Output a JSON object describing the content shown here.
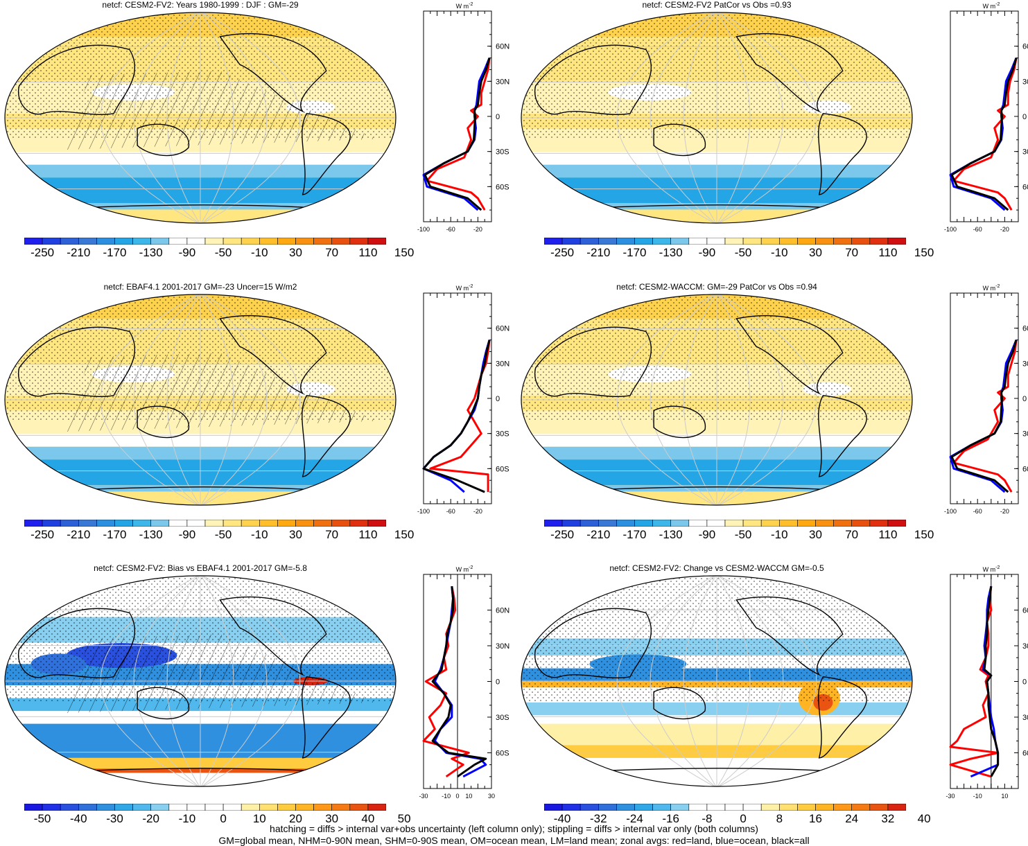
{
  "figure": {
    "footer": [
      "hatching = diffs > internal var+obs uncertainty (left column only); stippling = diffs > internal var only (both columns)",
      "GM=global mean, NHM=0-90N mean, SHM=0-90S mean, OM=ocean mean, LM=land mean; zonal avgs: red=land, blue=ocean, black=all"
    ],
    "zonal_unit": "W m",
    "zonal_unit_exp": "-2",
    "lat_labels": [
      "60N",
      "30N",
      "0",
      "30S",
      "60S"
    ],
    "colors": {
      "land": "#ff0000",
      "ocean": "#0000ff",
      "all": "#000000"
    }
  },
  "panels": [
    {
      "title": "netcf: CESM2-FV2: Years 1980-1999 : DJF : GM=-29",
      "kind": "field",
      "cbar_labels": [
        "-250",
        "-210",
        "-170",
        "-130",
        "-90",
        "-50",
        "-10",
        "30",
        "70",
        "110",
        "150"
      ],
      "zonal_ticks": [
        "-100",
        "-60",
        "-20"
      ]
    },
    {
      "title": "netcf: CESM2-FV2 PatCor vs Obs =0.93",
      "kind": "field",
      "cbar_labels": [
        "-250",
        "-210",
        "-170",
        "-130",
        "-90",
        "-50",
        "-10",
        "30",
        "70",
        "110",
        "150"
      ],
      "zonal_ticks": [
        "-100",
        "-60",
        "-20"
      ]
    },
    {
      "title": "netcf: EBAF4.1 2001-2017 GM=-23 Uncer=15 W/m2",
      "kind": "field",
      "cbar_labels": [
        "-250",
        "-210",
        "-170",
        "-130",
        "-90",
        "-50",
        "-10",
        "30",
        "70",
        "110",
        "150"
      ],
      "zonal_ticks": [
        "-100",
        "-60",
        "-20"
      ]
    },
    {
      "title": "netcf: CESM2-WACCM: GM=-29 PatCor vs Obs =0.94",
      "kind": "field",
      "cbar_labels": [
        "-250",
        "-210",
        "-170",
        "-130",
        "-90",
        "-50",
        "-10",
        "30",
        "70",
        "110",
        "150"
      ],
      "zonal_ticks": [
        "-100",
        "-60",
        "-20"
      ]
    },
    {
      "title": "netcf: CESM2-FV2: Bias vs EBAF4.1 2001-2017 GM=-5.8",
      "kind": "bias",
      "cbar_labels": [
        "-50",
        "-40",
        "-30",
        "-20",
        "-10",
        "0",
        "10",
        "20",
        "30",
        "40",
        "50"
      ],
      "zonal_ticks": [
        "-30",
        "-10",
        "0",
        "10",
        "30"
      ]
    },
    {
      "title": "netcf: CESM2-FV2: Change vs CESM2-WACCM GM=-0.5",
      "kind": "change",
      "cbar_labels": [
        "-40",
        "-32",
        "-24",
        "-16",
        "-8",
        "0",
        "8",
        "16",
        "24",
        "32",
        "40"
      ],
      "zonal_ticks": [
        "-30",
        "-10",
        "10"
      ]
    }
  ],
  "chart_data": [
    {
      "type": "line",
      "title": "netcf: CESM2-FV2: Years 1980-1999 : DJF : GM=-29",
      "xlim": [
        -100,
        0
      ],
      "ylim": [
        -90,
        90
      ],
      "y_ticks": [
        "60N",
        "30N",
        "0",
        "30S",
        "60S"
      ],
      "series": [
        {
          "name": "land",
          "lat": [
            50,
            40,
            30,
            20,
            10,
            5,
            0,
            -10,
            -20,
            -35,
            -45,
            -55,
            -65,
            -70,
            -80
          ],
          "values": [
            -3,
            -5,
            -10,
            -15,
            -15,
            -30,
            -20,
            -35,
            -30,
            -40,
            -80,
            -95,
            -30,
            -20,
            -10
          ]
        },
        {
          "name": "ocean",
          "lat": [
            50,
            40,
            30,
            20,
            10,
            5,
            0,
            -10,
            -20,
            -30,
            -40,
            -50,
            -60,
            -70,
            -80
          ],
          "values": [
            -3,
            -10,
            -18,
            -20,
            -22,
            -25,
            -25,
            -23,
            -25,
            -35,
            -70,
            -100,
            -95,
            -40,
            -20
          ]
        },
        {
          "name": "all",
          "lat": [
            50,
            40,
            30,
            20,
            10,
            5,
            0,
            -10,
            -20,
            -30,
            -40,
            -50,
            -60,
            -70,
            -80
          ],
          "values": [
            -3,
            -8,
            -15,
            -18,
            -20,
            -25,
            -24,
            -25,
            -26,
            -35,
            -70,
            -98,
            -90,
            -35,
            -15
          ]
        }
      ]
    },
    {
      "type": "line",
      "title": "netcf: CESM2-FV2 PatCor vs Obs =0.93",
      "xlim": [
        -100,
        0
      ],
      "ylim": [
        -90,
        90
      ],
      "y_ticks": [
        "60N",
        "30N",
        "0",
        "30S",
        "60S"
      ],
      "series": [
        {
          "name": "land",
          "lat": [
            50,
            40,
            30,
            20,
            10,
            5,
            0,
            -10,
            -20,
            -35,
            -45,
            -55,
            -65,
            -70,
            -80
          ],
          "values": [
            -3,
            -6,
            -12,
            -15,
            -15,
            -30,
            -20,
            -35,
            -30,
            -40,
            -80,
            -95,
            -30,
            -20,
            -10
          ]
        },
        {
          "name": "ocean",
          "lat": [
            50,
            40,
            30,
            20,
            10,
            5,
            0,
            -10,
            -20,
            -30,
            -40,
            -50,
            -60,
            -70,
            -80
          ],
          "values": [
            -3,
            -10,
            -18,
            -20,
            -22,
            -25,
            -25,
            -23,
            -25,
            -35,
            -70,
            -100,
            -95,
            -40,
            -20
          ]
        },
        {
          "name": "all",
          "lat": [
            50,
            40,
            30,
            20,
            10,
            5,
            0,
            -10,
            -20,
            -30,
            -40,
            -50,
            -60,
            -70,
            -80
          ],
          "values": [
            -3,
            -8,
            -15,
            -18,
            -20,
            -25,
            -24,
            -25,
            -26,
            -35,
            -70,
            -98,
            -90,
            -35,
            -15
          ]
        }
      ]
    },
    {
      "type": "line",
      "title": "netcf: EBAF4.1 2001-2017 GM=-23 Uncer=15 W/m2",
      "xlim": [
        -100,
        0
      ],
      "ylim": [
        -90,
        90
      ],
      "y_ticks": [
        "60N",
        "30N",
        "0",
        "30S",
        "60S"
      ],
      "series": [
        {
          "name": "land",
          "lat": [
            50,
            40,
            30,
            20,
            10,
            0,
            -10,
            -20,
            -30,
            -40,
            -50,
            -60,
            -65,
            -70,
            -80
          ],
          "values": [
            -3,
            -5,
            -8,
            -15,
            -20,
            -25,
            -35,
            -25,
            -15,
            -30,
            -45,
            -90,
            -5,
            -5,
            -5
          ]
        },
        {
          "name": "ocean",
          "lat": [
            50,
            40,
            30,
            20,
            10,
            0,
            -10,
            -20,
            -30,
            -40,
            -50,
            -60,
            -70,
            -80
          ],
          "values": [
            -3,
            -8,
            -12,
            -15,
            -18,
            -20,
            -25,
            -35,
            -45,
            -60,
            -85,
            -100,
            -60,
            -40
          ]
        },
        {
          "name": "all",
          "lat": [
            50,
            40,
            30,
            20,
            10,
            0,
            -10,
            -20,
            -30,
            -40,
            -50,
            -60,
            -70,
            -80
          ],
          "values": [
            -3,
            -7,
            -10,
            -15,
            -18,
            -20,
            -27,
            -35,
            -45,
            -60,
            -85,
            -100,
            -50,
            -10
          ]
        }
      ]
    },
    {
      "type": "line",
      "title": "netcf: CESM2-WACCM: GM=-29 PatCor vs Obs =0.94",
      "xlim": [
        -100,
        0
      ],
      "ylim": [
        -90,
        90
      ],
      "y_ticks": [
        "60N",
        "30N",
        "0",
        "30S",
        "60S"
      ],
      "series": [
        {
          "name": "land",
          "lat": [
            50,
            40,
            30,
            20,
            10,
            5,
            0,
            -10,
            -20,
            -35,
            -45,
            -55,
            -65,
            -70,
            -80
          ],
          "values": [
            -3,
            -5,
            -10,
            -15,
            -15,
            -30,
            -20,
            -35,
            -30,
            -45,
            -80,
            -95,
            -30,
            -20,
            -10
          ]
        },
        {
          "name": "ocean",
          "lat": [
            50,
            40,
            30,
            20,
            10,
            5,
            0,
            -10,
            -20,
            -30,
            -40,
            -50,
            -60,
            -70,
            -80
          ],
          "values": [
            -3,
            -10,
            -18,
            -20,
            -22,
            -25,
            -25,
            -23,
            -25,
            -35,
            -70,
            -100,
            -95,
            -40,
            -20
          ]
        },
        {
          "name": "all",
          "lat": [
            50,
            40,
            30,
            20,
            10,
            5,
            0,
            -10,
            -20,
            -30,
            -40,
            -50,
            -60,
            -70,
            -80
          ],
          "values": [
            -3,
            -8,
            -15,
            -18,
            -20,
            -25,
            -24,
            -25,
            -26,
            -35,
            -70,
            -98,
            -90,
            -35,
            -15
          ]
        }
      ]
    },
    {
      "type": "line",
      "title": "netcf: CESM2-FV2: Bias vs EBAF4.1 2001-2017 GM=-5.8",
      "xlim": [
        -30,
        30
      ],
      "ylim": [
        -90,
        90
      ],
      "y_ticks": [
        "60N",
        "30N",
        "0",
        "30S",
        "60S"
      ],
      "series": [
        {
          "name": "land",
          "lat": [
            80,
            70,
            60,
            50,
            40,
            30,
            20,
            10,
            0,
            -10,
            -20,
            -30,
            -40,
            -50,
            -55,
            -60,
            -65,
            -70,
            -80
          ],
          "values": [
            -5,
            -3,
            -2,
            -6,
            -10,
            -8,
            -12,
            -10,
            -28,
            -10,
            -15,
            -25,
            -20,
            -30,
            -10,
            10,
            -5,
            5,
            -10
          ]
        },
        {
          "name": "ocean",
          "lat": [
            80,
            70,
            60,
            50,
            40,
            30,
            20,
            10,
            0,
            -10,
            -20,
            -30,
            -40,
            -50,
            -60,
            -65,
            -70,
            -80
          ],
          "values": [
            -5,
            -4,
            -5,
            -6,
            -8,
            -10,
            -12,
            -15,
            -20,
            -12,
            -5,
            -5,
            -15,
            -20,
            -10,
            20,
            25,
            5
          ]
        },
        {
          "name": "all",
          "lat": [
            80,
            70,
            60,
            50,
            40,
            30,
            20,
            10,
            0,
            -10,
            -20,
            -30,
            -40,
            -50,
            -60,
            -65,
            -70,
            -80
          ],
          "values": [
            -5,
            -4,
            -4,
            -6,
            -9,
            -10,
            -12,
            -14,
            -22,
            -12,
            -6,
            -8,
            -15,
            -22,
            -8,
            25,
            15,
            0
          ]
        }
      ]
    },
    {
      "type": "line",
      "title": "netcf: CESM2-FV2: Change vs CESM2-WACCM GM=-0.5",
      "xlim": [
        -30,
        20
      ],
      "ylim": [
        -90,
        90
      ],
      "y_ticks": [
        "60N",
        "30N",
        "0",
        "30S",
        "60S"
      ],
      "series": [
        {
          "name": "land",
          "lat": [
            80,
            70,
            60,
            50,
            40,
            30,
            20,
            10,
            5,
            0,
            -10,
            -20,
            -30,
            -40,
            -50,
            -55,
            -60,
            -65,
            -70,
            -80
          ],
          "values": [
            0,
            -1,
            0,
            -3,
            -2,
            -2,
            -4,
            -8,
            -2,
            -4,
            -2,
            -6,
            -4,
            -20,
            -25,
            -30,
            5,
            -15,
            -30,
            0
          ]
        },
        {
          "name": "ocean",
          "lat": [
            80,
            70,
            60,
            50,
            40,
            30,
            20,
            10,
            5,
            0,
            -10,
            -20,
            -30,
            -40,
            -50,
            -60,
            -70,
            -75,
            -80
          ],
          "values": [
            0,
            -2,
            -3,
            -3,
            -4,
            -5,
            -4,
            -6,
            0,
            -3,
            -2,
            -1,
            0,
            2,
            3,
            5,
            5,
            -5,
            -15
          ]
        },
        {
          "name": "all",
          "lat": [
            80,
            70,
            60,
            50,
            40,
            30,
            20,
            10,
            5,
            0,
            -10,
            -20,
            -30,
            -40,
            -50,
            -60,
            -70,
            -80
          ],
          "values": [
            0,
            -1,
            -2,
            -3,
            -3,
            -4,
            -4,
            -5,
            0,
            -3,
            -2,
            -2,
            -1,
            0,
            3,
            5,
            5,
            0
          ]
        }
      ]
    }
  ]
}
